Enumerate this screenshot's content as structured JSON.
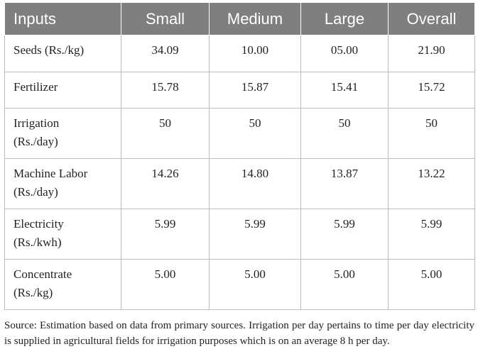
{
  "table": {
    "headers": [
      "Inputs",
      "Small",
      "Medium",
      "Large",
      "Overall"
    ],
    "rows": [
      {
        "input_line1": "Seeds (Rs./kg)",
        "input_line2": "",
        "values": [
          "34.09",
          "10.00",
          "05.00",
          "21.90"
        ]
      },
      {
        "input_line1": "Fertilizer",
        "input_line2": "",
        "values": [
          "15.78",
          "15.87",
          "15.41",
          "15.72"
        ]
      },
      {
        "input_line1": "Irrigation",
        "input_line2": "(Rs./day)",
        "values": [
          "50",
          "50",
          "50",
          "50"
        ]
      },
      {
        "input_line1": "Machine Labor",
        "input_line2": "(Rs./day)",
        "values": [
          "14.26",
          "14.80",
          "13.87",
          "13.22"
        ]
      },
      {
        "input_line1": "Electricity",
        "input_line2": "(Rs./kwh)",
        "values": [
          "5.99",
          "5.99",
          "5.99",
          "5.99"
        ]
      },
      {
        "input_line1": "Concentrate",
        "input_line2": "(Rs./kg)",
        "values": [
          "5.00",
          "5.00",
          "5.00",
          "5.00"
        ]
      }
    ]
  },
  "footnote": "Source: Estimation based on data from primary sources. Irrigation per day pertains to time per day electricity is supplied in agricultural fields for irrigation purposes which is on an average 8 h per day.",
  "colors": {
    "header_bg": "#7f7f7f",
    "header_text": "#ffffff",
    "grid": "#bcbcbc",
    "text": "#231f20"
  }
}
